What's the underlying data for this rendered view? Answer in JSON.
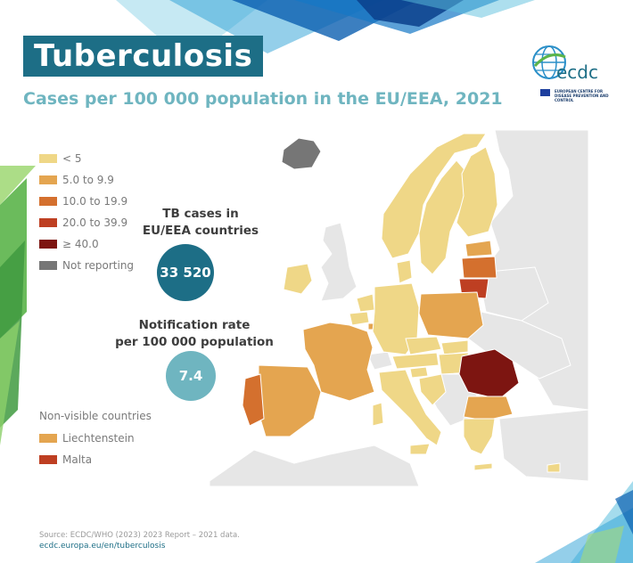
{
  "title": "Tuberculosis",
  "subtitle": "Cases per 100 000 population in the EU/EEA, 2021",
  "logo": {
    "text": "ecdc",
    "org": "EUROPEAN CENTRE FOR DISEASE PREVENTION AND CONTROL"
  },
  "legend": [
    {
      "label": "< 5",
      "color": "#efd787"
    },
    {
      "label": "5.0 to 9.9",
      "color": "#e4a550"
    },
    {
      "label": "10.0 to 19.9",
      "color": "#d4702e"
    },
    {
      "label": "20.0 to 39.9",
      "color": "#be3f22"
    },
    {
      "label": "≥ 40.0",
      "color": "#7d1511"
    },
    {
      "label": "Not reporting",
      "color": "#767676"
    }
  ],
  "stats": {
    "cases_label": "TB cases in EU/EEA countries",
    "cases_line1": "TB cases in",
    "cases_line2": "EU/EEA countries",
    "cases_value": "33 520",
    "rate_line1": "Notification rate",
    "rate_line2": "per 100 000 population",
    "rate_value": "7.4"
  },
  "non_visible": {
    "title": "Non-visible countries",
    "items": [
      {
        "label": "Liechtenstein",
        "color": "#e4a550"
      },
      {
        "label": "Malta",
        "color": "#be3f22"
      }
    ]
  },
  "source": "Source: ECDC/WHO (2023) 2023 Report – 2021 data.",
  "url": "ecdc.europa.eu/en/tuberculosis",
  "colors": {
    "title_bg": "#1d6e86",
    "subtitle": "#6fb5c0",
    "cases_circle": "#1d6e86",
    "rate_circle": "#6fb5c0",
    "non_eu": "#e6e6e6"
  }
}
